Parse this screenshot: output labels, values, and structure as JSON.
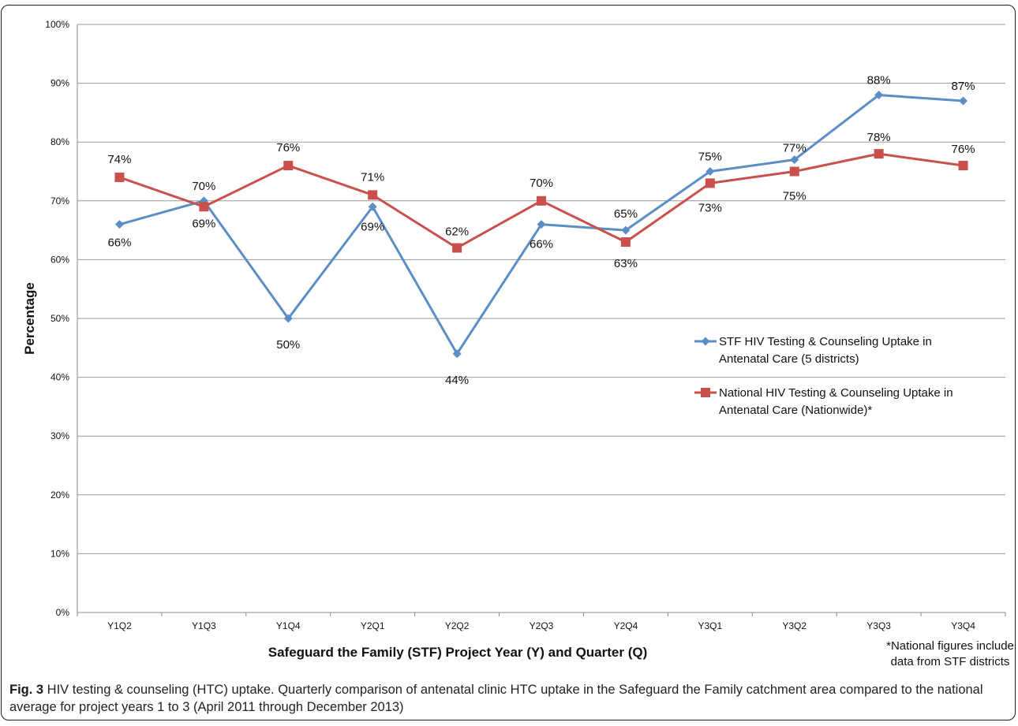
{
  "chart_data": {
    "type": "line",
    "title": "",
    "xlabel": "Safeguard the Family (STF) Project Year (Y) and Quarter (Q)",
    "ylabel": "Percentage",
    "ylim": [
      0,
      100
    ],
    "yticks": [
      "0%",
      "10%",
      "20%",
      "30%",
      "40%",
      "50%",
      "60%",
      "70%",
      "80%",
      "90%",
      "100%"
    ],
    "categories": [
      "Y1Q2",
      "Y1Q3",
      "Y1Q4",
      "Y2Q1",
      "Y2Q2",
      "Y2Q3",
      "Y2Q4",
      "Y3Q1",
      "Y3Q2",
      "Y3Q3",
      "Y3Q4"
    ],
    "grid": true,
    "legend_position": "right",
    "series": [
      {
        "name_line1": "STF HIV Testing & Counseling Uptake in",
        "name_line2": "Antenatal Care (5 districts)",
        "values": [
          66,
          70,
          50,
          69,
          44,
          66,
          65,
          75,
          77,
          88,
          87
        ],
        "labels": [
          "66%",
          "70%",
          "50%",
          "69%",
          "44%",
          "66%",
          "65%",
          "75%",
          "77%",
          "88%",
          "87%"
        ],
        "color": "#5b8ec4",
        "marker": "diamond"
      },
      {
        "name_line1": "National HIV Testing & Counseling Uptake in",
        "name_line2": "Antenatal Care (Nationwide)*",
        "values": [
          74,
          69,
          76,
          71,
          62,
          70,
          63,
          73,
          75,
          78,
          76
        ],
        "labels": [
          "74%",
          "69%",
          "76%",
          "71%",
          "62%",
          "70%",
          "63%",
          "73%",
          "75%",
          "78%",
          "76%"
        ],
        "color": "#c9504b",
        "marker": "square"
      }
    ]
  },
  "footnote": {
    "line1": "*National figures include",
    "line2": "data from STF districts"
  },
  "caption": {
    "label": "Fig. 3",
    "text": " HIV testing & counseling (HTC) uptake. Quarterly comparison of antenatal clinic HTC uptake in the Safeguard the Family catchment area compared to the national average for project years 1 to 3 (April 2011 through December 2013)"
  }
}
